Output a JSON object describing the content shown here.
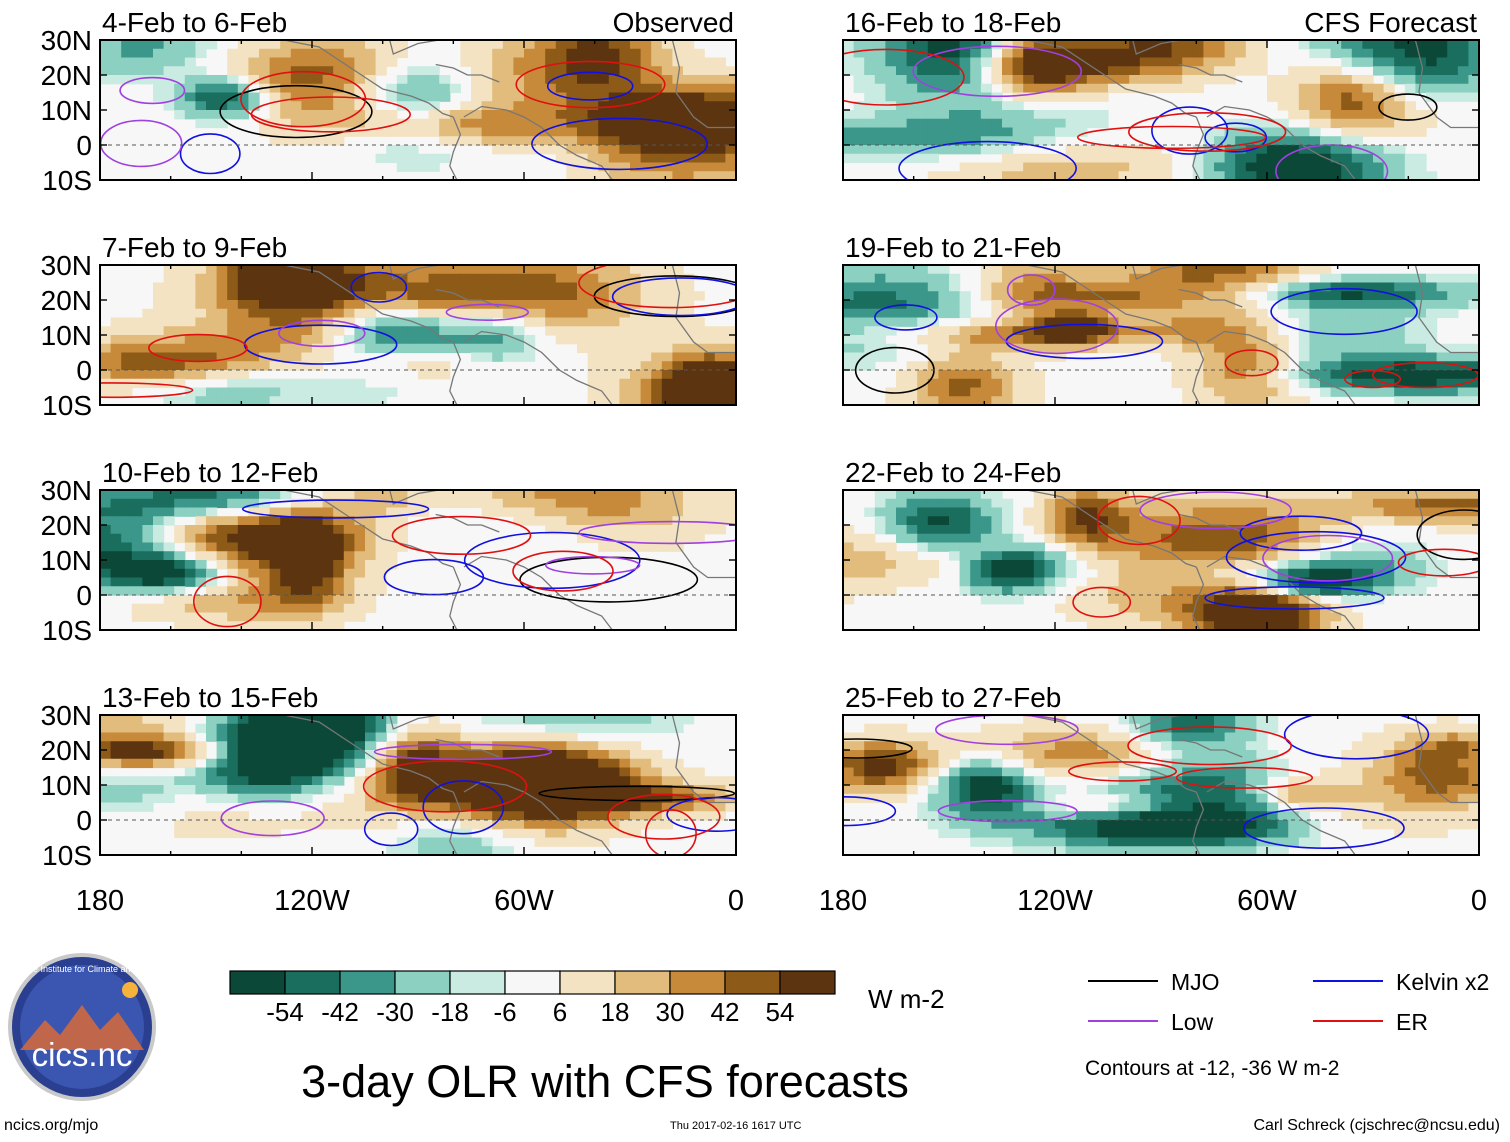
{
  "chart_data": {
    "type": "heatmap",
    "title": "3-day OLR with CFS forecasts",
    "units": "W m-2",
    "contour_note": "Contours at -12, -36 W m-2",
    "colors": {
      "mjo": "#000000",
      "kelvin": "#1010e0",
      "low": "#a040e0",
      "er": "#e01010",
      "land": "#777777",
      "positive_mid": "#d9a65e",
      "negative_mid": "#3a9c8a"
    },
    "lon_ticks": [
      "180",
      "120W",
      "60W",
      "0"
    ],
    "lat_ticks": [
      "30N",
      "20N",
      "10N",
      "0",
      "10S"
    ],
    "lat_values": [
      30,
      20,
      10,
      0,
      -10
    ],
    "lon_values": [
      180,
      120,
      60,
      0
    ],
    "colorbar": {
      "colors": [
        "#0c4838",
        "#1a6e5e",
        "#3b978a",
        "#8bd0c0",
        "#c9ebe2",
        "#f7f7f7",
        "#f3e3c2",
        "#e2bc7c",
        "#c78a3a",
        "#8d5a18",
        "#5c3510"
      ],
      "labels": [
        "-54",
        "-42",
        "-30",
        "-18",
        "-6",
        "6",
        "18",
        "30",
        "42",
        "54"
      ]
    },
    "panels": [
      {
        "period": "4-Feb to 6-Feb",
        "tag": "Observed",
        "col": 0,
        "row": 0,
        "seed": 3
      },
      {
        "period": "7-Feb to 9-Feb",
        "tag": "",
        "col": 0,
        "row": 1,
        "seed": 11
      },
      {
        "period": "10-Feb to 12-Feb",
        "tag": "",
        "col": 0,
        "row": 2,
        "seed": 23
      },
      {
        "period": "13-Feb to 15-Feb",
        "tag": "",
        "col": 0,
        "row": 3,
        "seed": 37
      },
      {
        "period": "16-Feb to 18-Feb",
        "tag": "CFS Forecast",
        "col": 1,
        "row": 0,
        "seed": 51
      },
      {
        "period": "19-Feb to 21-Feb",
        "tag": "",
        "col": 1,
        "row": 1,
        "seed": 67
      },
      {
        "period": "22-Feb to 24-Feb",
        "tag": "",
        "col": 1,
        "row": 2,
        "seed": 79
      },
      {
        "period": "25-Feb to 27-Feb",
        "tag": "",
        "col": 1,
        "row": 3,
        "seed": 93
      }
    ],
    "legend": [
      {
        "label": "MJO",
        "key": "mjo"
      },
      {
        "label": "Kelvin x2",
        "key": "kelvin"
      },
      {
        "label": "Low",
        "key": "low"
      },
      {
        "label": "ER",
        "key": "er"
      }
    ]
  },
  "logo": {
    "text": "cics.nc",
    "ring": "Cooperative Institute for Climate and Satellites"
  },
  "footer": {
    "left": "ncics.org/mjo",
    "center": "Thu 2017-02-16 1617 UTC",
    "right": "Carl Schreck (cjschrec@ncsu.edu)"
  }
}
